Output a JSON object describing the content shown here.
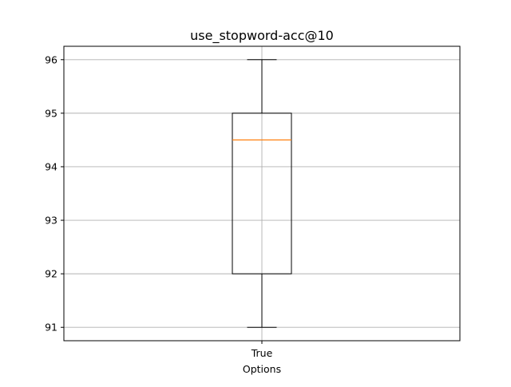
{
  "chart_data": {
    "type": "box",
    "title": "use_stopword-acc@10",
    "xlabel": "Options",
    "ylabel": "",
    "categories": [
      "True"
    ],
    "ylim": [
      90.75,
      96.25
    ],
    "yticks": [
      91,
      92,
      93,
      94,
      95,
      96
    ],
    "grid": true,
    "boxes": [
      {
        "category": "True",
        "whisker_low": 91,
        "q1": 92,
        "median": 94.5,
        "q3": 95,
        "whisker_high": 96
      }
    ]
  },
  "colors": {
    "median_line": "#ff7f0e",
    "box_edge": "#000000",
    "grid": "#b0b0b0",
    "axes": "#000000"
  }
}
